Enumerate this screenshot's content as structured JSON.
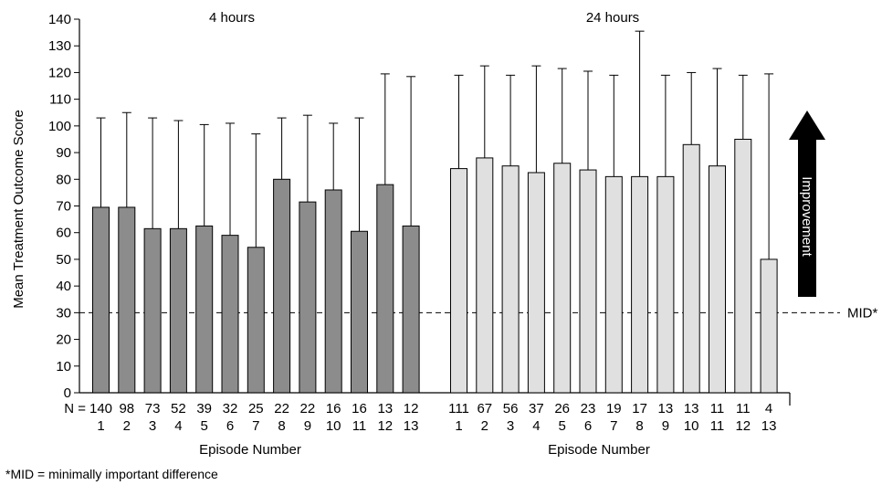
{
  "chart_data": {
    "type": "bar",
    "ylabel": "Mean Treatment Outcome Score",
    "ylim": [
      0,
      140
    ],
    "yticks": [
      0,
      10,
      20,
      30,
      40,
      50,
      60,
      70,
      80,
      90,
      100,
      110,
      120,
      130,
      140
    ],
    "n_prefix": "N =",
    "groups": [
      {
        "name": "4 hours",
        "xlabel": "Episode Number",
        "color": "#8c8c8c",
        "episodes": [
          "1",
          "2",
          "3",
          "4",
          "5",
          "6",
          "7",
          "8",
          "9",
          "10",
          "11",
          "12",
          "13"
        ],
        "n": [
          "140",
          "98",
          "73",
          "52",
          "39",
          "32",
          "25",
          "22",
          "22",
          "16",
          "16",
          "13",
          "12"
        ],
        "values": [
          69.5,
          69.5,
          61.5,
          61.5,
          62.5,
          59,
          54.5,
          80,
          71.5,
          76,
          60.5,
          78,
          62.5
        ],
        "error_upper": [
          103,
          105,
          103,
          102,
          100.5,
          101,
          97,
          103,
          104,
          101,
          103,
          119.5,
          118.5
        ]
      },
      {
        "name": "24 hours",
        "xlabel": "Episode Number",
        "color": "#e0e0e0",
        "episodes": [
          "1",
          "2",
          "3",
          "4",
          "5",
          "6",
          "7",
          "8",
          "9",
          "10",
          "11",
          "12",
          "13"
        ],
        "n": [
          "111",
          "67",
          "56",
          "37",
          "26",
          "23",
          "19",
          "17",
          "13",
          "13",
          "11",
          "11",
          "4"
        ],
        "values": [
          84,
          88,
          85,
          82.5,
          86,
          83.5,
          81,
          81,
          81,
          93,
          85,
          95,
          50
        ],
        "error_upper": [
          119,
          122.5,
          119,
          122.5,
          121.5,
          120.5,
          119,
          135.5,
          119,
          120,
          121.5,
          119,
          119.5
        ]
      }
    ],
    "reference_line": {
      "value": 30,
      "label": "MID*"
    },
    "arrow_label": "Improvement"
  },
  "footnote": "*MID = minimally important difference"
}
